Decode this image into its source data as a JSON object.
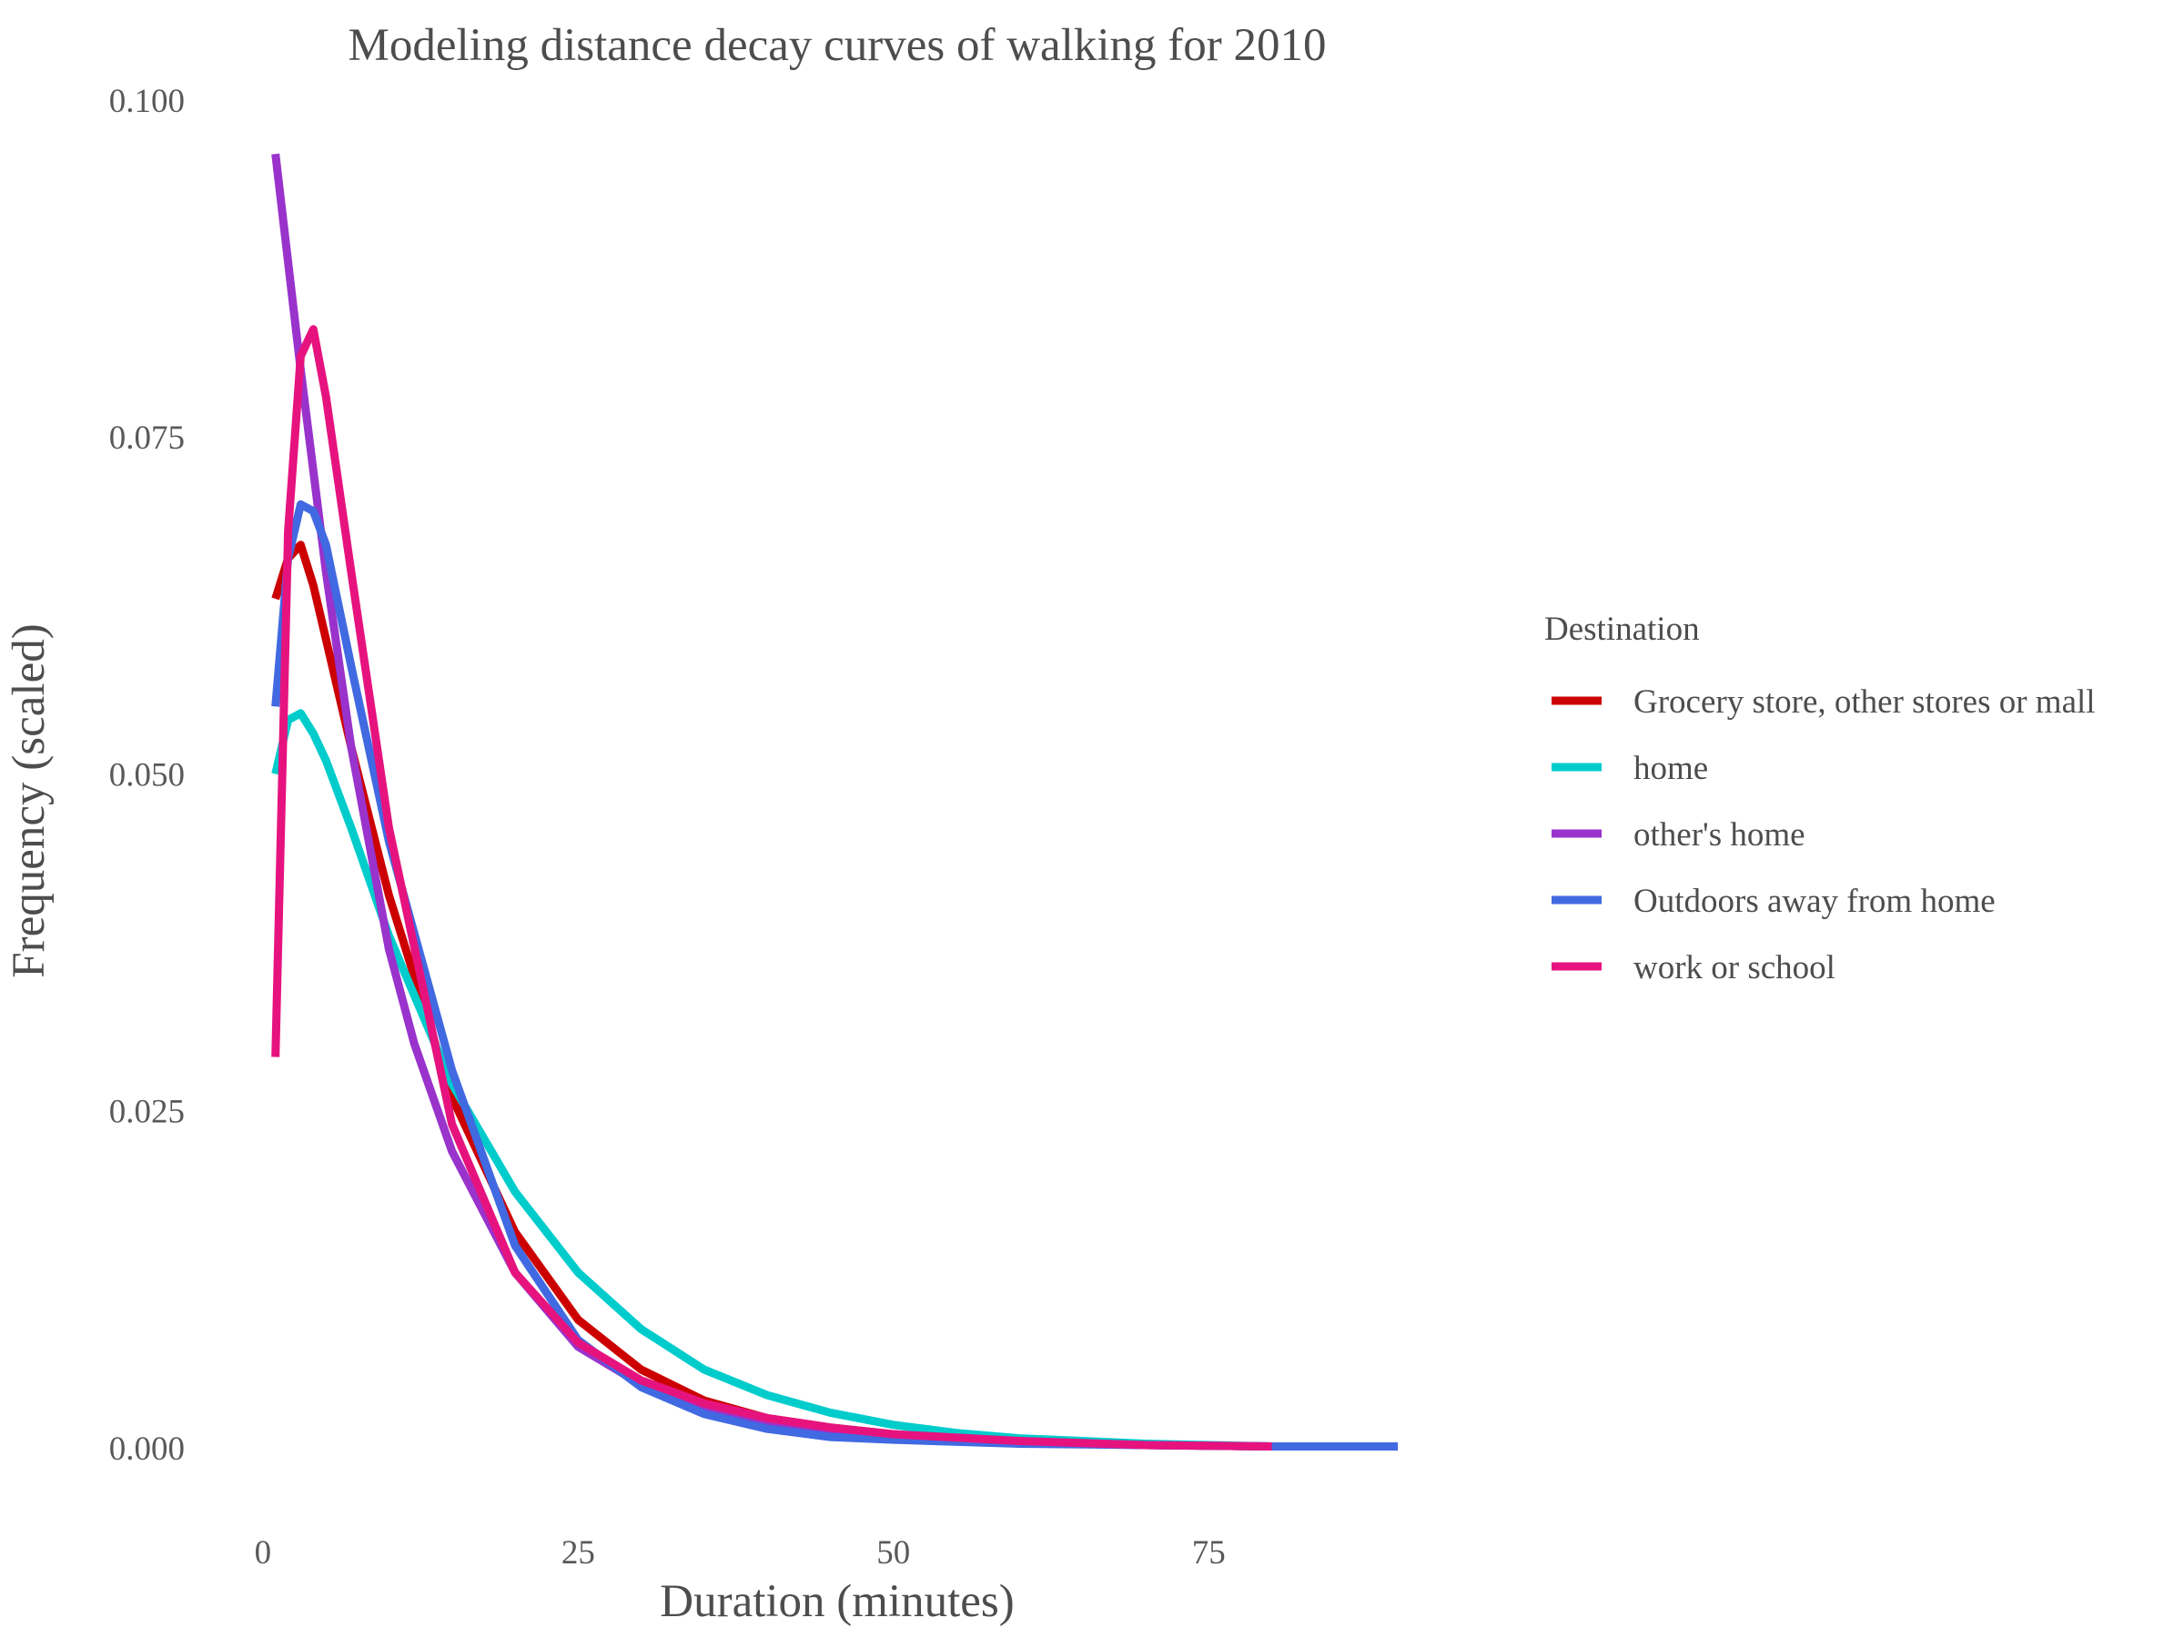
{
  "chart_data": {
    "type": "line",
    "title": "Modeling distance decay curves of walking for 2010",
    "xlabel": "Duration (minutes)",
    "ylabel": "Frequency (scaled)",
    "xlim": [
      -1,
      91
    ],
    "ylim": [
      -0.005,
      0.1
    ],
    "xticks": [
      0,
      25,
      50,
      75
    ],
    "xtick_labels": [
      "0",
      "25",
      "50",
      "75"
    ],
    "yticks": [
      0,
      0.025,
      0.05,
      0.075,
      0.1
    ],
    "ytick_labels": [
      "0.000",
      "0.025",
      "0.050",
      "0.075",
      "0.100"
    ],
    "grid": false,
    "legend": {
      "title": "Destination",
      "position": "right"
    },
    "series": [
      {
        "name": "Grocery store, other stores or mall",
        "color": "#cc0000",
        "points": [
          [
            1,
            0.063
          ],
          [
            2,
            0.066
          ],
          [
            3,
            0.067
          ],
          [
            4,
            0.064
          ],
          [
            5,
            0.06
          ],
          [
            7,
            0.052
          ],
          [
            10,
            0.041
          ],
          [
            15,
            0.026
          ],
          [
            20,
            0.016
          ],
          [
            25,
            0.0095
          ],
          [
            30,
            0.0058
          ],
          [
            35,
            0.0035
          ],
          [
            40,
            0.0022
          ],
          [
            45,
            0.0015
          ],
          [
            50,
            0.001
          ],
          [
            60,
            0.0005
          ],
          [
            70,
            0.0002
          ],
          [
            80,
            0.0001
          ]
        ]
      },
      {
        "name": "home",
        "color": "#00cccc",
        "points": [
          [
            1,
            0.05
          ],
          [
            2,
            0.054
          ],
          [
            3,
            0.0545
          ],
          [
            4,
            0.053
          ],
          [
            5,
            0.051
          ],
          [
            7,
            0.046
          ],
          [
            10,
            0.038
          ],
          [
            15,
            0.027
          ],
          [
            20,
            0.019
          ],
          [
            25,
            0.013
          ],
          [
            30,
            0.0088
          ],
          [
            35,
            0.0058
          ],
          [
            40,
            0.0039
          ],
          [
            45,
            0.0026
          ],
          [
            50,
            0.0017
          ],
          [
            55,
            0.0011
          ],
          [
            60,
            0.0007
          ],
          [
            70,
            0.0003
          ],
          [
            80,
            0.0001
          ]
        ]
      },
      {
        "name": "other's home",
        "color": "#9933cc",
        "points": [
          [
            1,
            0.096
          ],
          [
            3,
            0.08
          ],
          [
            5,
            0.065
          ],
          [
            7,
            0.052
          ],
          [
            10,
            0.037
          ],
          [
            12,
            0.03
          ],
          [
            15,
            0.022
          ],
          [
            20,
            0.013
          ],
          [
            25,
            0.0075
          ],
          [
            30,
            0.0047
          ],
          [
            35,
            0.003
          ],
          [
            40,
            0.002
          ],
          [
            45,
            0.0013
          ],
          [
            50,
            0.0009
          ],
          [
            60,
            0.0004
          ],
          [
            70,
            0.0002
          ],
          [
            80,
            0.0001
          ]
        ]
      },
      {
        "name": "Outdoors away from home",
        "color": "#4169e1",
        "points": [
          [
            1,
            0.055
          ],
          [
            2,
            0.066
          ],
          [
            3,
            0.07
          ],
          [
            4,
            0.0695
          ],
          [
            5,
            0.067
          ],
          [
            7,
            0.058
          ],
          [
            10,
            0.045
          ],
          [
            15,
            0.028
          ],
          [
            20,
            0.015
          ],
          [
            25,
            0.008
          ],
          [
            30,
            0.0045
          ],
          [
            35,
            0.0025
          ],
          [
            40,
            0.0014
          ],
          [
            45,
            0.0008
          ],
          [
            50,
            0.0006
          ],
          [
            60,
            0.0003
          ],
          [
            70,
            0.0002
          ],
          [
            80,
            0.0001
          ],
          [
            90,
            0.0001
          ]
        ]
      },
      {
        "name": "work or school",
        "color": "#e6137f",
        "points": [
          [
            1,
            0.029
          ],
          [
            2,
            0.068
          ],
          [
            3,
            0.081
          ],
          [
            4,
            0.083
          ],
          [
            5,
            0.078
          ],
          [
            7,
            0.065
          ],
          [
            10,
            0.046
          ],
          [
            15,
            0.024
          ],
          [
            20,
            0.013
          ],
          [
            25,
            0.0078
          ],
          [
            30,
            0.005
          ],
          [
            35,
            0.0033
          ],
          [
            40,
            0.0022
          ],
          [
            45,
            0.0015
          ],
          [
            50,
            0.001
          ],
          [
            60,
            0.0005
          ],
          [
            70,
            0.0002
          ],
          [
            80,
            0.0001
          ]
        ]
      }
    ]
  }
}
